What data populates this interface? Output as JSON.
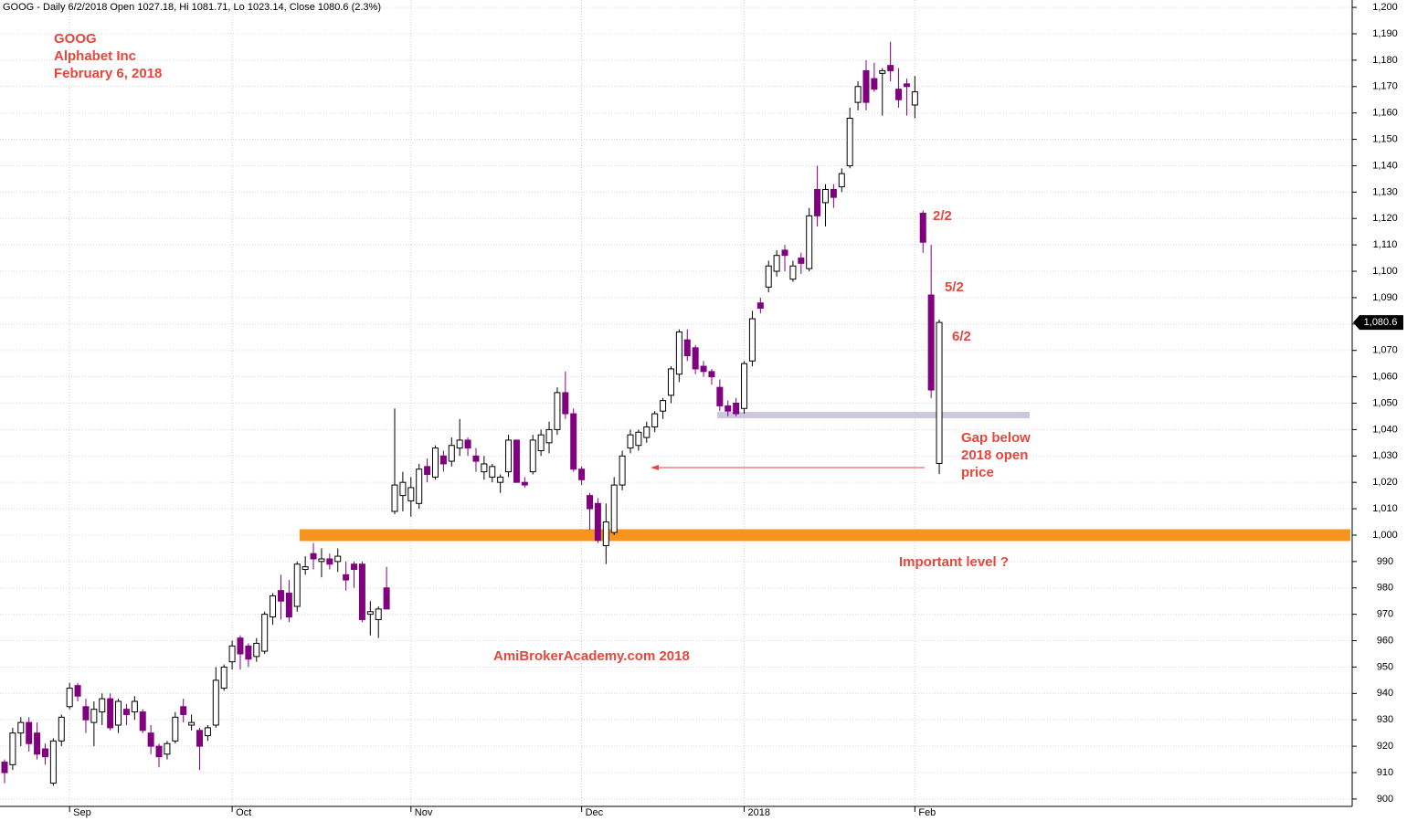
{
  "chart_data": {
    "type": "candlestick",
    "header": "GOOG - Daily 6/2/2018 Open 1027.18, Hi 1081.71, Lo 1023.14, Close 1080.6 (2.3%)",
    "title_lines": [
      "GOOG",
      "Alphabet Inc",
      "February 6, 2018"
    ],
    "watermark": "AmiBrokerAcademy.com 2018",
    "annotations": [
      "2/2",
      "5/2",
      "6/2",
      "Gap below",
      "2018 open",
      "price",
      "Important level ?"
    ],
    "categories": [
      null,
      null,
      null,
      null,
      null,
      null,
      null,
      null,
      "Sep",
      null,
      null,
      null,
      null,
      null,
      null,
      null,
      null,
      null,
      null,
      null,
      null,
      null,
      null,
      null,
      null,
      null,
      null,
      null,
      "Oct",
      null,
      null,
      null,
      null,
      null,
      null,
      null,
      null,
      null,
      null,
      null,
      null,
      null,
      null,
      null,
      null,
      null,
      null,
      null,
      null,
      null,
      "Nov",
      null,
      null,
      null,
      null,
      null,
      null,
      null,
      null,
      null,
      null,
      null,
      null,
      null,
      null,
      null,
      null,
      null,
      null,
      null,
      null,
      "Dec",
      null,
      null,
      null,
      null,
      null,
      null,
      null,
      null,
      null,
      null,
      null,
      null,
      null,
      null,
      null,
      null,
      null,
      null,
      null,
      "2018",
      null,
      null,
      null,
      null,
      null,
      null,
      null,
      null,
      null,
      null,
      null,
      null,
      null,
      null,
      null,
      null,
      null,
      null,
      null,
      null,
      "Feb",
      null,
      null,
      null
    ],
    "open": [
      914,
      913,
      925,
      929,
      925,
      919,
      906,
      922,
      935,
      943,
      935,
      929,
      933,
      938,
      928,
      934,
      933,
      933,
      925,
      920,
      917,
      922,
      935,
      928,
      926,
      924,
      928,
      942,
      952,
      961,
      958,
      954,
      956,
      969,
      979,
      978,
      973,
      987,
      993,
      990,
      991,
      990,
      985,
      989,
      989,
      970,
      968,
      980,
      1009,
      1015,
      1013,
      1012,
      1026,
      1022,
      1030,
      1028,
      1033,
      1036,
      1030,
      1024,
      1022,
      1020,
      1024,
      1036,
      1020,
      1024,
      1032,
      1035,
      1040,
      1054,
      1046,
      1025,
      1015,
      1012,
      996,
      1001,
      1019,
      1033,
      1034,
      1037,
      1041,
      1047,
      1053,
      1061,
      1074,
      1071,
      1064,
      1062,
      1056,
      1049,
      1050,
      1048,
      1066,
      1088,
      1094,
      1100,
      1108,
      1097,
      1105,
      1101,
      1131,
      1126,
      1131,
      1132,
      1140,
      1164,
      1176,
      1173,
      1175,
      1178,
      1169,
      1171,
      1163,
      1122,
      1091,
      1027.18
    ],
    "high": [
      915,
      927,
      931,
      931,
      929,
      921,
      923,
      932,
      944,
      944,
      938,
      937,
      940,
      940,
      938,
      936,
      939,
      934,
      928,
      921,
      922,
      933,
      938,
      932,
      927,
      928,
      950,
      951,
      960,
      962,
      959,
      961,
      971,
      978,
      985,
      983,
      990,
      992,
      997,
      995,
      993,
      995,
      990,
      990,
      990,
      975,
      973,
      988,
      1048,
      1024,
      1022,
      1027,
      1029,
      1034,
      1032,
      1037,
      1044,
      1037,
      1033,
      1030,
      1027,
      1023,
      1038,
      1036,
      1022,
      1038,
      1040,
      1043,
      1056,
      1062,
      1048,
      1026,
      1016,
      1014,
      1012,
      1022,
      1032,
      1040,
      1040,
      1043,
      1047,
      1052,
      1064,
      1078,
      1078,
      1072,
      1066,
      1063,
      1059,
      1051,
      1052,
      1066,
      1085,
      1090,
      1104,
      1108,
      1110,
      1104,
      1107,
      1124,
      1140,
      1133,
      1133,
      1139,
      1162,
      1172,
      1180,
      1179,
      1177,
      1187,
      1177,
      1173,
      1174,
      1123,
      1110,
      1081.71
    ],
    "low": [
      906,
      911,
      920,
      918,
      915,
      913,
      905,
      920,
      934,
      937,
      925,
      920,
      928,
      926,
      925,
      928,
      930,
      925,
      917,
      912,
      915,
      921,
      929,
      926,
      911,
      922,
      927,
      941,
      949,
      949,
      950,
      952,
      955,
      966,
      968,
      967,
      971,
      985,
      987,
      984,
      987,
      986,
      979,
      980,
      967,
      962,
      961,
      972,
      1008,
      1009,
      1007,
      1010,
      1020,
      1021,
      1024,
      1026,
      1030,
      1030,
      1024,
      1021,
      1020,
      1016,
      1022,
      1020,
      1018,
      1023,
      1030,
      1031,
      1038,
      1044,
      1024,
      1019,
      1002,
      997,
      989,
      1000,
      1017,
      1031,
      1032,
      1035,
      1039,
      1044,
      1050,
      1058,
      1066,
      1061,
      1060,
      1057,
      1047,
      1045,
      1045,
      1046,
      1064,
      1084,
      1092,
      1098,
      1100,
      1096,
      1099,
      1100,
      1117,
      1117,
      1124,
      1130,
      1139,
      1161,
      1161,
      1168,
      1159,
      1172,
      1162,
      1159,
      1158,
      1107,
      1052,
      1023.14
    ],
    "close": [
      910,
      925,
      929,
      921,
      917,
      916,
      922,
      931,
      942,
      939,
      930,
      934,
      938,
      927,
      937,
      932,
      937,
      926,
      920,
      916,
      921,
      931,
      932,
      929,
      920,
      927,
      945,
      950,
      958,
      955,
      953,
      959,
      970,
      977,
      975,
      969,
      989,
      988,
      991,
      991,
      989,
      992,
      983,
      987,
      968,
      971,
      972,
      972,
      1019,
      1020,
      1018,
      1025,
      1023,
      1033,
      1027,
      1034,
      1036,
      1033,
      1028,
      1027,
      1026,
      1022,
      1036,
      1020,
      1019,
      1036,
      1038,
      1040,
      1054,
      1046,
      1025,
      1021,
      1010,
      998,
      1005,
      1019,
      1030,
      1038,
      1039,
      1041,
      1046,
      1051,
      1063,
      1077,
      1068,
      1063,
      1062,
      1060,
      1049,
      1047,
      1046,
      1065,
      1082,
      1086,
      1102,
      1106,
      1106,
      1102,
      1103,
      1121,
      1121,
      1131,
      1128,
      1137,
      1158,
      1170,
      1164,
      1169,
      1176,
      1176,
      1165,
      1170,
      1168,
      1111,
      1055,
      1080.6
    ],
    "up_color": "#ffffff",
    "down_color": "#800080",
    "ylim": [
      897.2,
      1202.8
    ],
    "yticks": [
      900,
      910,
      920,
      930,
      940,
      950,
      960,
      970,
      980,
      990,
      {
        "value": 1000,
        "label": "1,000"
      },
      {
        "value": 1010,
        "label": "1,010"
      },
      {
        "value": 1020,
        "label": "1,020"
      },
      {
        "value": 1030,
        "label": "1,030"
      },
      {
        "value": 1040,
        "label": "1,040"
      },
      {
        "value": 1050,
        "label": "1,050"
      },
      {
        "value": 1060,
        "label": "1,060"
      },
      {
        "value": 1070,
        "label": "1,070"
      },
      {
        "value": 1080,
        "label": "1,080"
      },
      {
        "value": 1090,
        "label": "1,090"
      },
      {
        "value": 1100,
        "label": "1,100"
      },
      {
        "value": 1110,
        "label": "1,110"
      },
      {
        "value": 1120,
        "label": "1,120"
      },
      {
        "value": 1130,
        "label": "1,130"
      },
      {
        "value": 1140,
        "label": "1,140"
      },
      {
        "value": 1150,
        "label": "1,150"
      },
      {
        "value": 1160,
        "label": "1,160"
      },
      {
        "value": 1170,
        "label": "1,170"
      },
      {
        "value": 1180,
        "label": "1,180"
      },
      {
        "value": 1190,
        "label": "1,190"
      },
      {
        "value": 1200,
        "label": "1,200"
      }
    ],
    "last_price": {
      "value": 1080.6,
      "label": "1,080.6"
    },
    "levels": [
      {
        "value": 1000,
        "color": "#f7941d"
      },
      {
        "value": 1045.5,
        "color": "#cfc6e0"
      }
    ],
    "grid": true
  }
}
